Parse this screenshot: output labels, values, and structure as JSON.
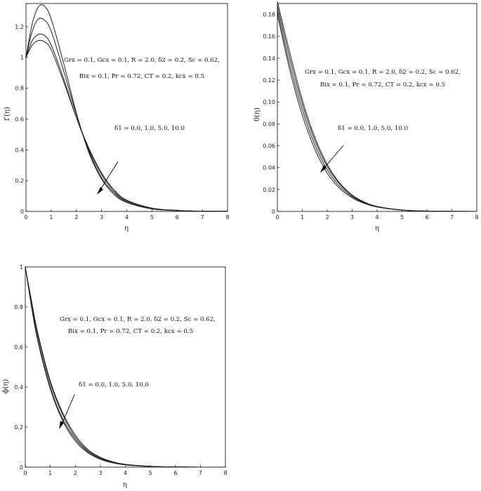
{
  "chart_data": [
    {
      "type": "line",
      "xlabel": "η",
      "ylabel": "f′(η)",
      "xlim": [
        0,
        8
      ],
      "ylim": [
        0,
        1.35
      ],
      "xticks": [
        "0",
        "1",
        "2",
        "3",
        "4",
        "5",
        "6",
        "7",
        "8"
      ],
      "yticks": [
        "0",
        "0.2",
        "0.4",
        "0.6",
        "0.8",
        "1",
        "1.2"
      ],
      "grid": false,
      "annotation_line1": "Grx = 0.1, Gcx = 0.1, R = 2.0, δ2 = 0.2, Sc = 0.62,",
      "annotation_line2": "Bix = 0.1, Pr = 0.72, CT = 0.2, kcx = 0.5",
      "param_label": "δ1 = 0.0, 1.0, 5.0, 10.0",
      "x": [
        0,
        0.25,
        0.5,
        0.75,
        1.0,
        1.5,
        2.0,
        2.5,
        3.0,
        3.5,
        4.0,
        5.0,
        6.0,
        7.0,
        8.0
      ],
      "series": [
        {
          "values": [
            1.0,
            1.22,
            1.33,
            1.33,
            1.25,
            0.96,
            0.64,
            0.38,
            0.21,
            0.11,
            0.058,
            0.016,
            0.005,
            0.002,
            0.001
          ]
        },
        {
          "values": [
            1.0,
            1.17,
            1.25,
            1.24,
            1.17,
            0.91,
            0.63,
            0.39,
            0.22,
            0.12,
            0.062,
            0.018,
            0.006,
            0.002,
            0.001
          ]
        },
        {
          "values": [
            1.0,
            1.11,
            1.15,
            1.14,
            1.08,
            0.86,
            0.61,
            0.4,
            0.24,
            0.13,
            0.068,
            0.02,
            0.006,
            0.002,
            0.001
          ]
        },
        {
          "values": [
            1.0,
            1.08,
            1.11,
            1.1,
            1.05,
            0.84,
            0.61,
            0.41,
            0.25,
            0.14,
            0.073,
            0.022,
            0.007,
            0.002,
            0.001
          ]
        }
      ]
    },
    {
      "type": "line",
      "xlabel": "η",
      "ylabel": "θ(η)",
      "xlim": [
        0,
        8
      ],
      "ylim": [
        0,
        0.19
      ],
      "xticks": [
        "0",
        "1",
        "2",
        "3",
        "4",
        "5",
        "6",
        "7",
        "8"
      ],
      "yticks": [
        "0",
        "0.02",
        "0.04",
        "0.06",
        "0.08",
        "0.10",
        "0.12",
        "0.14",
        "0.16",
        "0.18"
      ],
      "grid": false,
      "annotation_line1": "Grx = 0.1, Gcx = 0.1, R = 2.0, δ2 = 0.2, Sc = 0.62,",
      "annotation_line2": "Bix = 0.1, Pr = 0.72, CT = 0.2, kcx = 0.5",
      "param_label": "δ1 = 0.0, 1.0, 5.0, 10.0",
      "x": [
        0,
        0.5,
        1.0,
        1.5,
        2.0,
        2.5,
        3.0,
        3.5,
        4.0,
        5.0,
        6.0,
        7.0,
        8.0
      ],
      "series": [
        {
          "values": [
            0.192,
            0.145,
            0.102,
            0.068,
            0.043,
            0.026,
            0.015,
            0.0085,
            0.0046,
            0.0013,
            0.0004,
            0.0001,
            0.0
          ]
        },
        {
          "values": [
            0.188,
            0.14,
            0.098,
            0.065,
            0.041,
            0.025,
            0.0145,
            0.0082,
            0.0045,
            0.0013,
            0.0004,
            0.0001,
            0.0
          ]
        },
        {
          "values": [
            0.184,
            0.134,
            0.093,
            0.061,
            0.038,
            0.023,
            0.0135,
            0.0077,
            0.0042,
            0.0012,
            0.0003,
            0.0001,
            0.0
          ]
        },
        {
          "values": [
            0.18,
            0.129,
            0.088,
            0.057,
            0.035,
            0.021,
            0.0125,
            0.0072,
            0.004,
            0.0011,
            0.0003,
            0.0001,
            0.0
          ]
        }
      ]
    },
    {
      "type": "line",
      "xlabel": "η",
      "ylabel": "ϕ(η)",
      "xlim": [
        0,
        8
      ],
      "ylim": [
        0,
        1.0
      ],
      "xticks": [
        "0",
        "1",
        "2",
        "3",
        "4",
        "5",
        "6",
        "7",
        "8"
      ],
      "yticks": [
        "0",
        "0.2",
        "0.4",
        "0.6",
        "0.8",
        "1"
      ],
      "grid": false,
      "annotation_line1": "Grx = 0.1, Gcx = 0.1, R = 2.0, δ2 = 0.2, Sc = 0.62,",
      "annotation_line2": "Bix = 0.1, Pr = 0.72, CT = 0.2, kcx = 0.5",
      "param_label": "δ1 = 0.0, 1.0, 5.0, 10.0",
      "x": [
        0,
        0.25,
        0.5,
        1.0,
        1.5,
        2.0,
        2.5,
        3.0,
        3.5,
        4.0,
        5.0,
        6.0,
        7.0,
        8.0
      ],
      "series": [
        {
          "values": [
            1.0,
            0.8,
            0.63,
            0.39,
            0.23,
            0.13,
            0.072,
            0.039,
            0.021,
            0.011,
            0.003,
            0.001,
            0.0,
            0.0
          ]
        },
        {
          "values": [
            1.0,
            0.81,
            0.64,
            0.4,
            0.24,
            0.14,
            0.077,
            0.042,
            0.023,
            0.012,
            0.0035,
            0.001,
            0.0,
            0.0
          ]
        },
        {
          "values": [
            1.0,
            0.82,
            0.66,
            0.42,
            0.26,
            0.15,
            0.083,
            0.046,
            0.025,
            0.013,
            0.004,
            0.001,
            0.0,
            0.0
          ]
        },
        {
          "values": [
            1.0,
            0.83,
            0.67,
            0.43,
            0.27,
            0.16,
            0.088,
            0.049,
            0.027,
            0.014,
            0.004,
            0.001,
            0.0,
            0.0
          ]
        }
      ]
    }
  ]
}
